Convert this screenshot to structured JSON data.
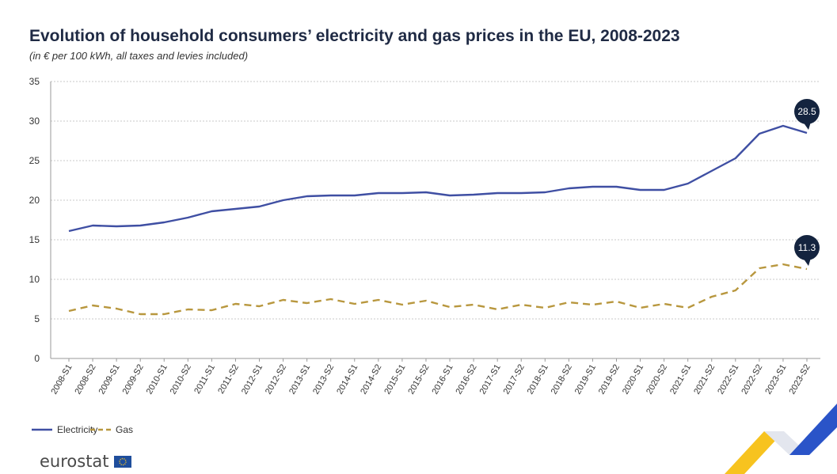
{
  "chart_data": {
    "type": "line",
    "title": "Evolution of household consumers’ electricity and gas prices in the EU, 2008-2023",
    "subtitle": "(in € per 100 kWh, all taxes and levies included)",
    "x": [
      "2008-S1",
      "2008-S2",
      "2009-S1",
      "2009-S2",
      "2010-S1",
      "2010-S2",
      "2011-S1",
      "2011-S2",
      "2012-S1",
      "2012-S2",
      "2013-S1",
      "2013-S2",
      "2014-S1",
      "2014-S2",
      "2015-S1",
      "2015-S2",
      "2016-S1",
      "2016-S2",
      "2017-S1",
      "2017-S2",
      "2018-S1",
      "2018-S2",
      "2019-S1",
      "2019-S2",
      "2020-S1",
      "2020-S2",
      "2021-S1",
      "2021-S2",
      "2022-S1",
      "2022-S2",
      "2023-S1",
      "2023-S2"
    ],
    "series": [
      {
        "name": "Electricity",
        "color": "#3f4fa3",
        "style": "solid",
        "values": [
          16.1,
          16.8,
          16.7,
          16.8,
          17.2,
          17.8,
          18.6,
          18.9,
          19.2,
          20.0,
          20.5,
          20.6,
          20.6,
          20.9,
          20.9,
          21.0,
          20.6,
          20.7,
          20.9,
          20.9,
          21.0,
          21.5,
          21.7,
          21.7,
          21.3,
          21.3,
          22.1,
          23.7,
          25.3,
          28.4,
          29.4,
          28.5
        ],
        "callout": "28.5"
      },
      {
        "name": "Gas",
        "color": "#b8973e",
        "style": "dashed",
        "values": [
          6.0,
          6.7,
          6.3,
          5.6,
          5.6,
          6.2,
          6.1,
          6.9,
          6.6,
          7.4,
          7.0,
          7.5,
          6.9,
          7.4,
          6.8,
          7.3,
          6.5,
          6.8,
          6.2,
          6.8,
          6.4,
          7.1,
          6.8,
          7.2,
          6.4,
          6.9,
          6.4,
          7.8,
          8.6,
          11.4,
          11.9,
          11.3
        ],
        "callout": "11.3"
      }
    ],
    "yticks": [
      "0",
      "5",
      "10",
      "15",
      "20",
      "25",
      "30",
      "35"
    ],
    "ylim": [
      0,
      35
    ],
    "grid": true,
    "legend_position": "bottom-left"
  },
  "branding": {
    "logo_text": "eurostat",
    "logo_flag_color": "#1f4e9c",
    "accent_colors": [
      "#f7c31f",
      "#2a54c8"
    ]
  }
}
